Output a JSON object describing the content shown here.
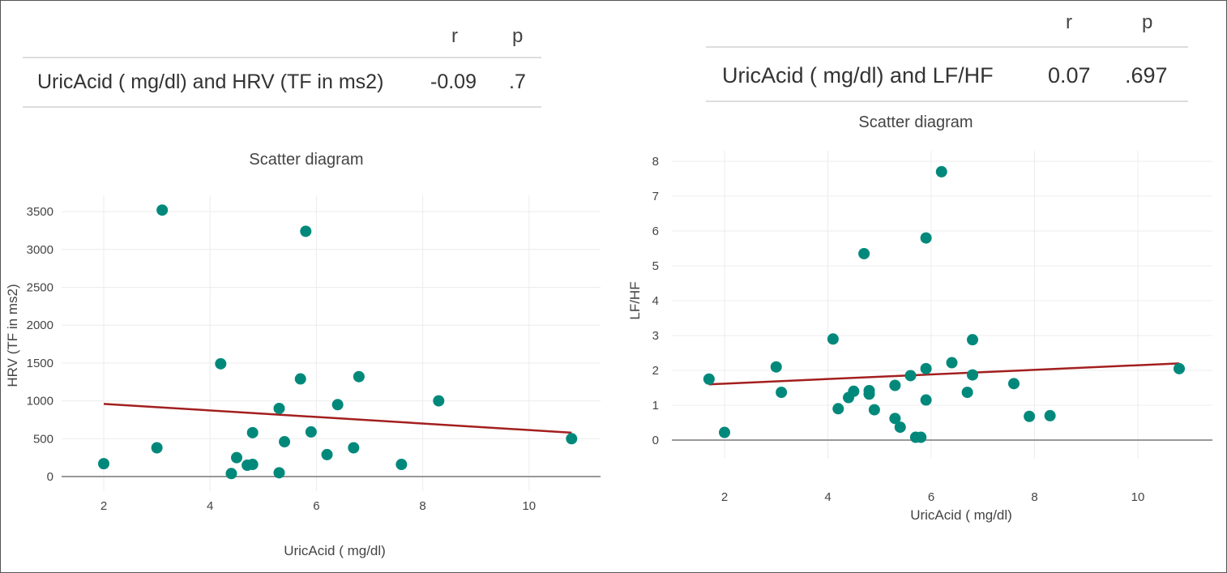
{
  "tables": [
    {
      "headers": {
        "r": "r",
        "p": "p"
      },
      "row": {
        "label": "UricAcid ( mg/dl) and HRV (TF in ms2)",
        "r": "-0.09",
        "p": ".7"
      }
    },
    {
      "headers": {
        "r": "r",
        "p": "p"
      },
      "row": {
        "label": "UricAcid ( mg/dl) and LF/HF",
        "r": "0.07",
        "p": ".697"
      }
    }
  ],
  "colors": {
    "points": "#00897b",
    "regression": "#a31f1f",
    "grid": "#ececec",
    "axis": "#999999"
  },
  "chart_data": [
    {
      "type": "scatter",
      "title": "Scatter diagram",
      "xlabel": "UricAcid ( mg/dl)",
      "ylabel": "HRV (TF in ms2)",
      "xticks": [
        2,
        4,
        6,
        8,
        10
      ],
      "yticks": [
        0,
        500,
        1000,
        1500,
        2000,
        2500,
        3000,
        3500
      ],
      "grid": true,
      "points": [
        [
          2,
          170
        ],
        [
          3.1,
          3520
        ],
        [
          3,
          380
        ],
        [
          4.2,
          1490
        ],
        [
          4.5,
          250
        ],
        [
          4.4,
          40
        ],
        [
          4.7,
          150
        ],
        [
          4.8,
          160
        ],
        [
          4.8,
          580
        ],
        [
          5.3,
          900
        ],
        [
          5.3,
          50
        ],
        [
          5.4,
          460
        ],
        [
          5.7,
          1290
        ],
        [
          5.8,
          3240
        ],
        [
          5.9,
          590
        ],
        [
          6.2,
          290
        ],
        [
          6.4,
          950
        ],
        [
          6.7,
          380
        ],
        [
          6.8,
          1320
        ],
        [
          7.6,
          160
        ],
        [
          8.3,
          1000
        ],
        [
          10.8,
          500
        ]
      ],
      "regression_line": [
        [
          2,
          960
        ],
        [
          10.8,
          580
        ]
      ]
    },
    {
      "type": "scatter",
      "title": "Scatter diagram",
      "xlabel": "UricAcid ( mg/dl)",
      "ylabel": "LF/HF",
      "xticks": [
        2,
        4,
        6,
        8,
        10
      ],
      "yticks": [
        0,
        1,
        2,
        3,
        4,
        5,
        6,
        7,
        8
      ],
      "grid": true,
      "points": [
        [
          1.7,
          1.75
        ],
        [
          2,
          0.22
        ],
        [
          3,
          2.1
        ],
        [
          3.1,
          1.37
        ],
        [
          4.1,
          2.9
        ],
        [
          4.2,
          0.9
        ],
        [
          4.4,
          1.22
        ],
        [
          4.5,
          1.4
        ],
        [
          4.7,
          5.35
        ],
        [
          4.8,
          1.42
        ],
        [
          4.8,
          1.32
        ],
        [
          4.9,
          0.87
        ],
        [
          5.3,
          1.57
        ],
        [
          5.3,
          0.62
        ],
        [
          5.4,
          0.37
        ],
        [
          5.6,
          1.85
        ],
        [
          5.7,
          0.08
        ],
        [
          5.8,
          0.08
        ],
        [
          5.9,
          2.05
        ],
        [
          5.9,
          5.8
        ],
        [
          5.9,
          1.15
        ],
        [
          6.2,
          7.7
        ],
        [
          6.4,
          2.22
        ],
        [
          6.7,
          1.37
        ],
        [
          6.8,
          2.88
        ],
        [
          6.8,
          1.87
        ],
        [
          7.6,
          1.62
        ],
        [
          7.9,
          0.68
        ],
        [
          8.3,
          0.7
        ],
        [
          10.8,
          2.05
        ]
      ],
      "regression_line": [
        [
          1.7,
          1.6
        ],
        [
          10.8,
          2.2
        ]
      ]
    }
  ]
}
